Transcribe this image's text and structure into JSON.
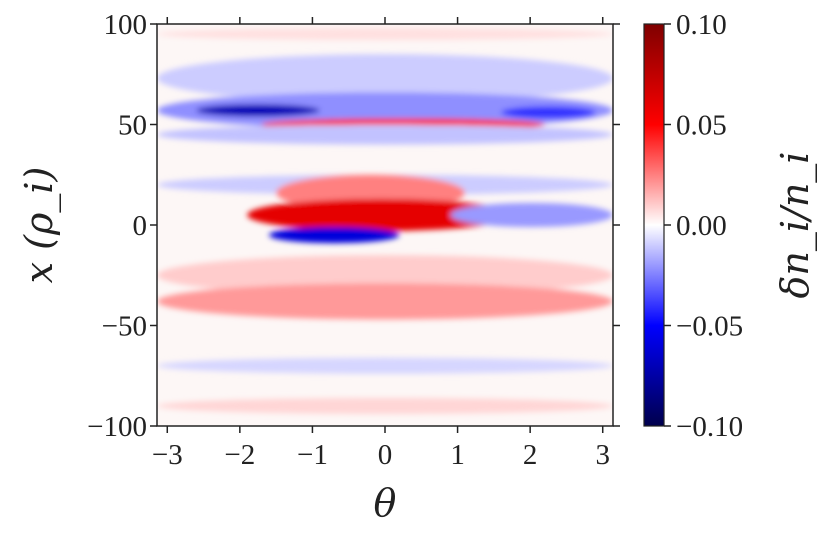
{
  "chart_data": {
    "type": "heatmap",
    "title": "",
    "xlabel": "θ",
    "ylabel": "x (ρ_i)",
    "colorbar_label": "δn_i/n_i",
    "xlim": [
      -3.1416,
      3.1416
    ],
    "ylim": [
      -100,
      100
    ],
    "x_ticks": [
      -3,
      -2,
      -1,
      0,
      1,
      2,
      3
    ],
    "x_tick_labels": [
      "−3",
      "−2",
      "−1",
      "0",
      "1",
      "2",
      "3"
    ],
    "y_ticks": [
      100,
      50,
      0,
      -50,
      -100
    ],
    "y_tick_labels": [
      "100",
      "50",
      "0",
      "−50",
      "−100"
    ],
    "colorbar_range": [
      -0.1,
      0.1
    ],
    "colorbar_ticks": [
      0.1,
      0.05,
      0.0,
      -0.05,
      -0.1
    ],
    "colorbar_tick_labels": [
      "0.10",
      "0.05",
      "0.00",
      "−0.05",
      "−0.10"
    ],
    "colormap": "seismic",
    "colormap_stops": [
      "#00004c",
      "#0000ff",
      "#ffffff",
      "#ff0000",
      "#7f0000"
    ],
    "grid": false,
    "features": [
      {
        "theta": -3.14,
        "theta_end": 3.14,
        "x": 95,
        "x_width": 3,
        "value": 0.006
      },
      {
        "theta": -3.14,
        "theta_end": 3.14,
        "x": 73,
        "x_width": 12,
        "value": -0.01
      },
      {
        "theta": -3.14,
        "theta_end": 3.14,
        "x": 57,
        "x_width": 9,
        "value": -0.022
      },
      {
        "theta": -2.6,
        "theta_end": -0.9,
        "x": 57,
        "x_width": 3,
        "value": -0.07
      },
      {
        "theta": 1.6,
        "theta_end": 2.9,
        "x": 56,
        "x_width": 3,
        "value": -0.04
      },
      {
        "theta": -1.7,
        "theta_end": 2.2,
        "x": 50,
        "x_width": 3,
        "value": 0.05
      },
      {
        "theta": -3.14,
        "theta_end": 3.14,
        "x": 45,
        "x_width": 5,
        "value": -0.012
      },
      {
        "theta": -3.14,
        "theta_end": 3.14,
        "x": 20,
        "x_width": 5,
        "value": -0.01
      },
      {
        "theta": -1.5,
        "theta_end": 1.1,
        "x": 16,
        "x_width": 9,
        "value": 0.025
      },
      {
        "theta": -1.9,
        "theta_end": 1.8,
        "x": 5,
        "x_width": 8,
        "value": 0.06
      },
      {
        "theta": -1.6,
        "theta_end": 0.2,
        "x": -5,
        "x_width": 4,
        "value": -0.06
      },
      {
        "theta": 0.9,
        "theta_end": 3.14,
        "x": 5,
        "x_width": 6,
        "value": -0.02
      },
      {
        "theta": -3.14,
        "theta_end": 3.14,
        "x": -25,
        "x_width": 10,
        "value": 0.01
      },
      {
        "theta": -3.14,
        "theta_end": 3.14,
        "x": -38,
        "x_width": 9,
        "value": 0.02
      },
      {
        "theta": -3.14,
        "theta_end": 3.14,
        "x": -70,
        "x_width": 4,
        "value": -0.008
      },
      {
        "theta": -3.14,
        "theta_end": 3.14,
        "x": -90,
        "x_width": 4,
        "value": 0.008
      }
    ]
  }
}
